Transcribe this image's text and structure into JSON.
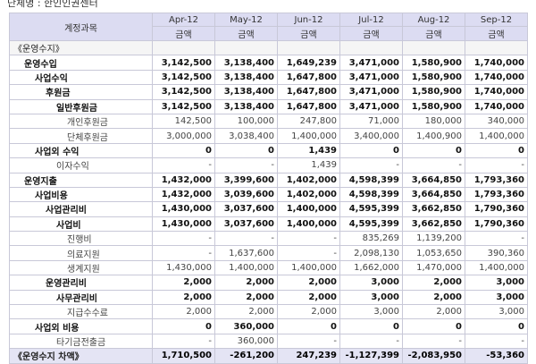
{
  "page": {
    "top_text": "단체명 : 한인인권센터"
  },
  "table": {
    "header_corner": "계정과목",
    "months": [
      "Apr-12",
      "May-12",
      "Jun-12",
      "Jul-12",
      "Aug-12",
      "Sep-12"
    ],
    "sub_label": "금액",
    "rows": [
      {
        "label": "《운영수지》",
        "indent": 0,
        "style": "section",
        "values": [
          "",
          "",
          "",
          "",
          "",
          ""
        ]
      },
      {
        "label": "운영수입",
        "indent": 1,
        "style": "bold",
        "values": [
          "3,142,500",
          "3,138,400",
          "1,649,239",
          "3,471,000",
          "1,580,900",
          "1,740,000"
        ]
      },
      {
        "label": "사업수익",
        "indent": 2,
        "style": "bold",
        "values": [
          "3,142,500",
          "3,138,400",
          "1,647,800",
          "3,471,000",
          "1,580,900",
          "1,740,000"
        ]
      },
      {
        "label": "후원금",
        "indent": 3,
        "style": "bold",
        "values": [
          "3,142,500",
          "3,138,400",
          "1,647,800",
          "3,471,000",
          "1,580,900",
          "1,740,000"
        ]
      },
      {
        "label": "일반후원금",
        "indent": 4,
        "style": "bold",
        "values": [
          "3,142,500",
          "3,138,400",
          "1,647,800",
          "3,471,000",
          "1,580,900",
          "1,740,000"
        ]
      },
      {
        "label": "개인후원금",
        "indent": 5,
        "style": "normal",
        "values": [
          "142,500",
          "100,000",
          "247,800",
          "71,000",
          "180,000",
          "340,000"
        ]
      },
      {
        "label": "단체후원금",
        "indent": 5,
        "style": "normal",
        "values": [
          "3,000,000",
          "3,038,400",
          "1,400,000",
          "3,400,000",
          "1,400,900",
          "1,400,000"
        ]
      },
      {
        "label": "사업외 수익",
        "indent": 2,
        "style": "bold",
        "values": [
          "0",
          "0",
          "1,439",
          "0",
          "0",
          "0"
        ]
      },
      {
        "label": "이자수익",
        "indent": 4,
        "style": "normal",
        "values": [
          "-",
          "-",
          "1,439",
          "-",
          "-",
          "-"
        ]
      },
      {
        "label": "운영지출",
        "indent": 1,
        "style": "bold",
        "values": [
          "1,432,000",
          "3,399,600",
          "1,402,000",
          "4,598,399",
          "3,664,850",
          "1,793,360"
        ]
      },
      {
        "label": "사업비용",
        "indent": 2,
        "style": "bold",
        "values": [
          "1,432,000",
          "3,039,600",
          "1,402,000",
          "4,598,399",
          "3,664,850",
          "1,793,360"
        ]
      },
      {
        "label": "사업관리비",
        "indent": 3,
        "style": "bold",
        "values": [
          "1,430,000",
          "3,037,600",
          "1,400,000",
          "4,595,399",
          "3,662,850",
          "1,790,360"
        ]
      },
      {
        "label": "사업비",
        "indent": 4,
        "style": "bold",
        "values": [
          "1,430,000",
          "3,037,600",
          "1,400,000",
          "4,595,399",
          "3,662,850",
          "1,790,360"
        ]
      },
      {
        "label": "진행비",
        "indent": 5,
        "style": "normal",
        "values": [
          "-",
          "-",
          "-",
          "835,269",
          "1,139,200",
          "-"
        ]
      },
      {
        "label": "의료지원",
        "indent": 5,
        "style": "normal",
        "values": [
          "-",
          "1,637,600",
          "-",
          "2,098,130",
          "1,053,650",
          "390,360"
        ]
      },
      {
        "label": "생계지원",
        "indent": 5,
        "style": "normal",
        "values": [
          "1,430,000",
          "1,400,000",
          "1,400,000",
          "1,662,000",
          "1,470,000",
          "1,400,000"
        ]
      },
      {
        "label": "운영관리비",
        "indent": 3,
        "style": "bold",
        "values": [
          "2,000",
          "2,000",
          "2,000",
          "3,000",
          "2,000",
          "3,000"
        ]
      },
      {
        "label": "사무관리비",
        "indent": 4,
        "style": "bold",
        "values": [
          "2,000",
          "2,000",
          "2,000",
          "3,000",
          "2,000",
          "3,000"
        ]
      },
      {
        "label": "지급수수료",
        "indent": 5,
        "style": "normal",
        "values": [
          "2,000",
          "2,000",
          "2,000",
          "3,000",
          "2,000",
          "3,000"
        ]
      },
      {
        "label": "사업외 비용",
        "indent": 2,
        "style": "bold",
        "values": [
          "0",
          "360,000",
          "0",
          "0",
          "0",
          "0"
        ]
      },
      {
        "label": "타기금전출금",
        "indent": 4,
        "style": "normal",
        "values": [
          "-",
          "360,000",
          "-",
          "-",
          "-",
          "-"
        ]
      },
      {
        "label": "《운영수지 차액》",
        "indent": 0,
        "style": "total",
        "values": [
          "1,710,500",
          "-261,200",
          "247,239",
          "-1,127,399",
          "-2,083,950",
          "-53,360"
        ]
      }
    ]
  }
}
